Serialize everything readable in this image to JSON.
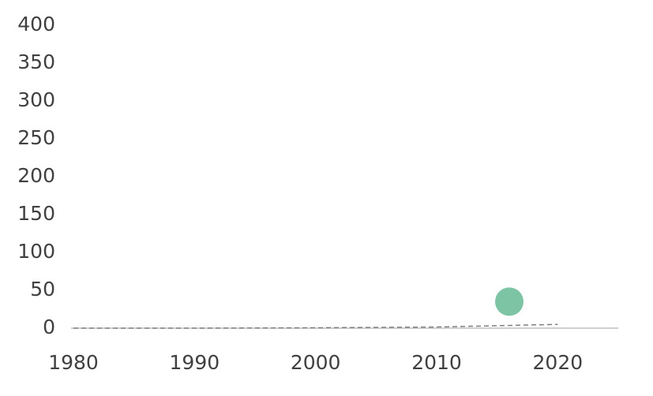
{
  "chart_data": {
    "type": "scatter",
    "xlim": [
      1980,
      2025
    ],
    "xticks": [
      1980,
      1990,
      2000,
      2010,
      2020
    ],
    "ylim": [
      0,
      400
    ],
    "yticks": [
      0,
      50,
      100,
      150,
      200,
      250,
      300,
      350,
      400
    ],
    "series": [
      {
        "color": "#7dc4a5",
        "x": [
          2016
        ],
        "values": [
          35
        ]
      },
      {
        "color": "#808080",
        "line": "dashed",
        "x": [
          1980,
          1990,
          2000,
          2010,
          2020
        ],
        "values": [
          0,
          0,
          0.5,
          1.5,
          5
        ]
      }
    ]
  }
}
